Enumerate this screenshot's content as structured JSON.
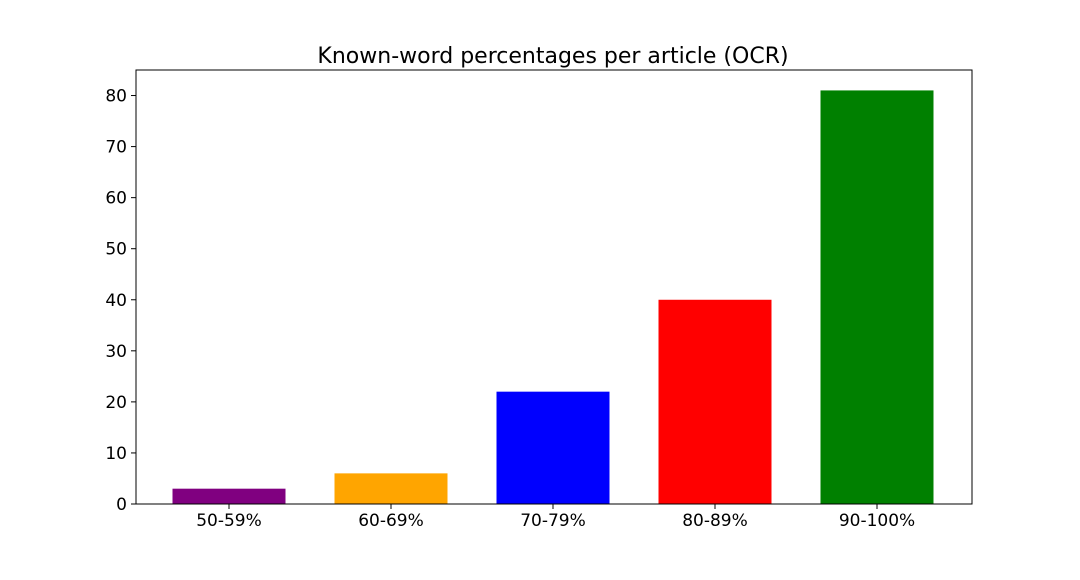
{
  "chart_data": {
    "type": "bar",
    "title": "Known-word percentages per article (OCR)",
    "xlabel": "",
    "ylabel": "",
    "categories": [
      "50-59%",
      "60-69%",
      "70-79%",
      "80-89%",
      "90-100%"
    ],
    "values": [
      3,
      6,
      22,
      40,
      81
    ],
    "colors": [
      "#800080",
      "#ffa500",
      "#0000ff",
      "#ff0000",
      "#008000"
    ],
    "ylim": [
      0,
      85
    ],
    "yticks": [
      0,
      10,
      20,
      30,
      40,
      50,
      60,
      70,
      80
    ],
    "grid": false,
    "legend": "none"
  }
}
